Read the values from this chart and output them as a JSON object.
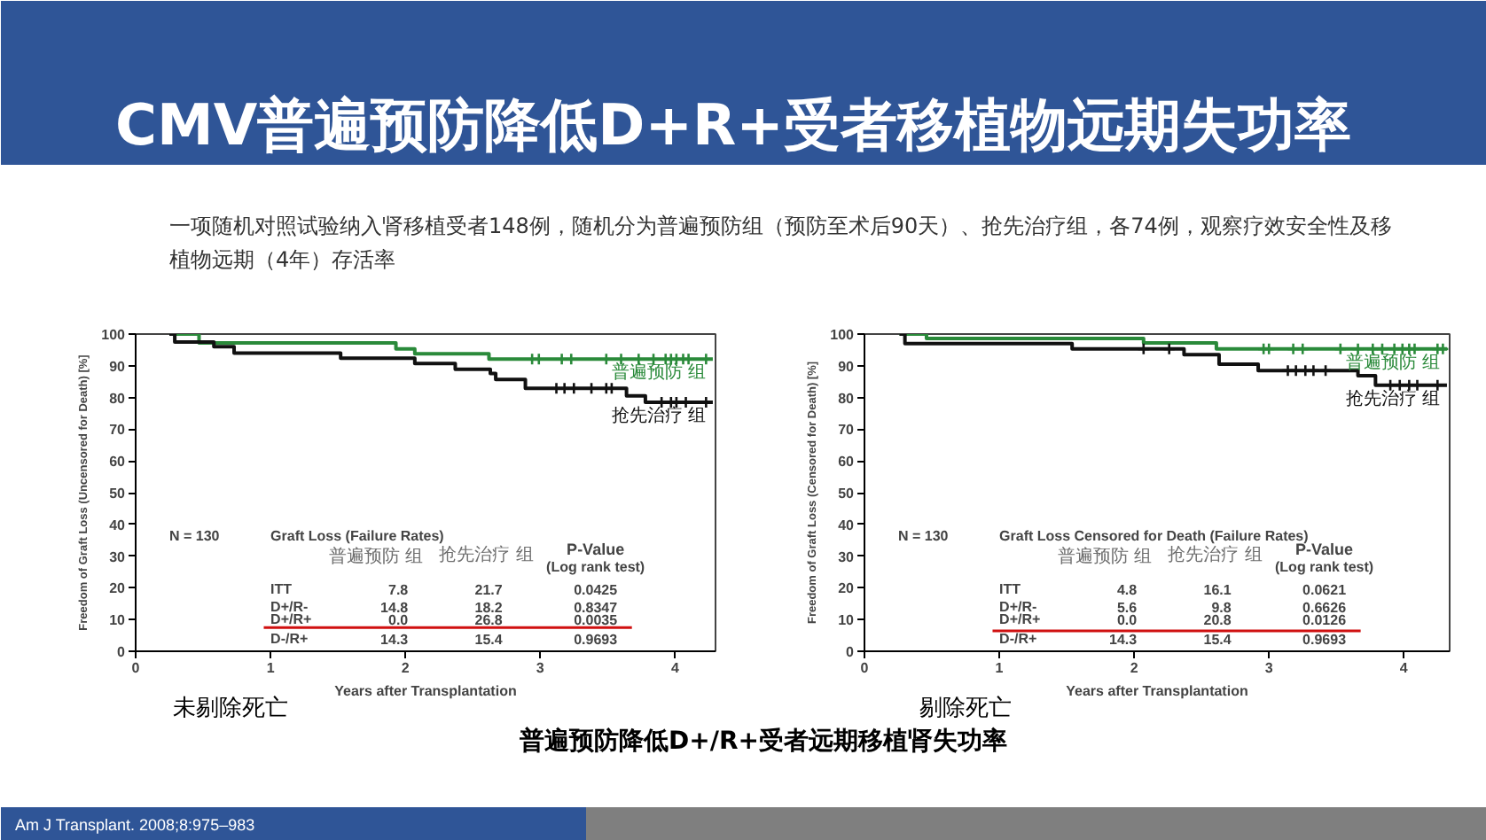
{
  "chart_data": [
    {
      "type": "step",
      "title": "CMV普遍预防降低D+R+受者移植物远期失功率",
      "subtitle": "一项随机对照试验纳入肾移植受者148例，随机分为普遍预防组（预防至术后90天）、抢先治疗组，各74例，观察疗效安全性及移植物远期（4年）存活率",
      "xlabel": "Years after Transplantation",
      "ylabel": "Freedom of Graft Loss (Uncensored for Death) [%]",
      "xlim": [
        0,
        4.3
      ],
      "ylim": [
        0,
        100
      ],
      "xticks": [
        0,
        1,
        2,
        3,
        4
      ],
      "yticks": [
        0,
        10,
        20,
        30,
        40,
        50,
        60,
        70,
        80,
        90,
        100
      ],
      "series": [
        {
          "name": "普遍预防 组",
          "color": "#2a8a3a",
          "x": [
            0.25,
            0.47,
            1.93,
            2.07,
            2.62,
            4.28
          ],
          "values": [
            100,
            97.2,
            95.3,
            93.8,
            92.1,
            92.1
          ]
        },
        {
          "name": "抢先治疗 组",
          "color": "#111111",
          "x": [
            0.25,
            0.29,
            0.58,
            0.73,
            1.52,
            2.07,
            2.37,
            2.63,
            2.67,
            2.89,
            3.64,
            3.78,
            4.28
          ],
          "values": [
            100,
            97.5,
            96.0,
            94.0,
            92.4,
            90.7,
            88.9,
            87.6,
            85.7,
            82.9,
            80.5,
            78.5,
            78.5
          ]
        },
        {
          "type": "scatter",
          "marker": "cross",
          "color": "#2a8a3a",
          "x": [
            2.94,
            2.99,
            3.16,
            3.23,
            3.49,
            3.6,
            3.73,
            3.84,
            3.93,
            3.97,
            4.01,
            4.06,
            4.1,
            4.23
          ],
          "values": [
            92.1,
            92.1,
            92.1,
            92.1,
            92.1,
            92.1,
            92.1,
            92.1,
            92.1,
            92.1,
            92.1,
            92.1,
            92.1,
            92.1
          ]
        },
        {
          "type": "scatter",
          "marker": "cross",
          "color": "#111111",
          "x": [
            3.12,
            3.18,
            3.25,
            3.38,
            3.49,
            3.53,
            3.9,
            3.97,
            4.01,
            4.08,
            4.23
          ],
          "values": [
            82.9,
            82.9,
            82.9,
            82.9,
            82.9,
            82.9,
            78.5,
            78.5,
            78.5,
            78.5,
            78.5
          ]
        }
      ],
      "ref_lines": [
        {
          "axis": "y",
          "value": 7.5,
          "color": "#d01010"
        }
      ],
      "annotations": [
        "N = 130",
        "Graft Loss (Failure Rates)",
        "普遍预防 组",
        "抢先治疗 组",
        "P-Value",
        "(Log rank test)",
        "ITT",
        "7.8",
        "21.7",
        "0.0425",
        "D+/R-",
        "14.8",
        "18.2",
        "0.8347",
        "D+/R+",
        "0.0",
        "26.8",
        "0.0035",
        "D-/R+",
        "14.3",
        "15.4",
        "0.9693",
        "未剔除死亡"
      ]
    },
    {
      "type": "step",
      "xlabel": "Years after Transplantation",
      "ylabel": "Freedom of Graft Loss (Censored for Death) [%]",
      "xlim": [
        0,
        4.34
      ],
      "ylim": [
        0,
        100
      ],
      "xticks": [
        0,
        1,
        2,
        3,
        4
      ],
      "yticks": [
        0,
        10,
        20,
        30,
        40,
        50,
        60,
        70,
        80,
        90,
        100
      ],
      "series": [
        {
          "name": "普遍预防 组",
          "color": "#2a8a3a",
          "x": [
            0.26,
            0.46,
            2.07,
            2.61,
            4.32
          ],
          "values": [
            100,
            98.6,
            97.2,
            95.3,
            95.3
          ]
        },
        {
          "name": "抢先治疗 组",
          "color": "#111111",
          "x": [
            0.26,
            0.3,
            1.54,
            2.37,
            2.63,
            2.92,
            3.66,
            3.79,
            4.32
          ],
          "values": [
            100,
            97.0,
            95.3,
            93.5,
            90.5,
            88.5,
            86.9,
            83.9,
            83.9
          ]
        },
        {
          "type": "scatter",
          "marker": "cross",
          "color": "#2a8a3a",
          "x": [
            2.96,
            3.0,
            3.18,
            3.25,
            3.53,
            3.66,
            3.77,
            3.84,
            3.93,
            3.99,
            4.04,
            4.08,
            4.25,
            4.29
          ],
          "values": [
            95.3,
            95.3,
            95.3,
            95.3,
            95.3,
            95.3,
            95.3,
            95.3,
            95.3,
            95.3,
            95.3,
            95.3,
            95.3,
            95.3
          ]
        },
        {
          "type": "scatter",
          "marker": "cross",
          "color": "#111111",
          "x": [
            2.07,
            2.26,
            3.14,
            3.2,
            3.27,
            3.33,
            3.42,
            3.9,
            3.97,
            4.04,
            4.1,
            4.25
          ],
          "values": [
            95.3,
            95.3,
            88.5,
            88.5,
            88.5,
            88.5,
            88.5,
            83.9,
            83.9,
            83.9,
            83.9,
            83.9
          ]
        }
      ],
      "ref_lines": [
        {
          "axis": "y",
          "value": 6.4,
          "color": "#d01010"
        }
      ],
      "annotations": [
        "N = 130",
        "Graft Loss Censored for Death (Failure Rates)",
        "普遍预防 组",
        "抢先治疗 组",
        "P-Value",
        "(Log rank test)",
        "ITT",
        "4.8",
        "16.1",
        "0.0621",
        "D+/R-",
        "5.6",
        "9.8",
        "0.6626",
        "D+/R+",
        "0.0",
        "20.8",
        "0.0126",
        "D-/R+",
        "14.3",
        "15.4",
        "0.9693",
        "剔除死亡",
        "普遍预防降低D+/R+受者远期移植肾失功率",
        "Am J Transplant. 2008;8:975–983"
      ]
    }
  ]
}
